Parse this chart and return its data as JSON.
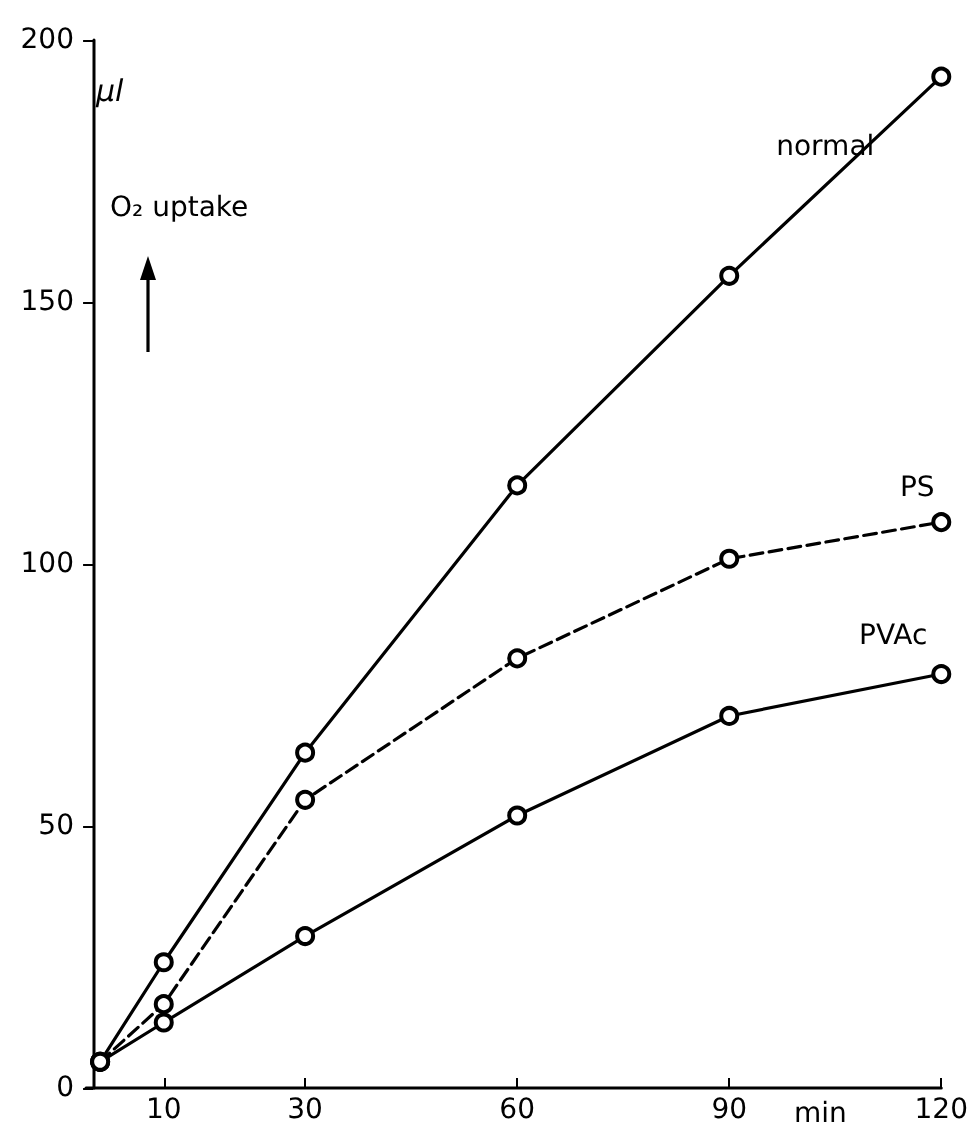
{
  "chart_data": {
    "type": "line",
    "xlabel": "min",
    "ylabel": "µl",
    "annotations": [
      "O₂ uptake"
    ],
    "xlim": [
      -1,
      120
    ],
    "xticks": [
      10,
      30,
      60,
      90,
      120
    ],
    "ylim": [
      0,
      200
    ],
    "yticks": [
      0,
      50,
      100,
      150,
      200
    ],
    "grid": false,
    "legend": false,
    "marker": "circle",
    "series": [
      {
        "name": "normal",
        "color": "#000000",
        "line_style": "solid",
        "x": [
          1,
          10,
          30,
          60,
          90,
          120
        ],
        "values": [
          5,
          24,
          64,
          115,
          155,
          193
        ]
      },
      {
        "name": "PS",
        "color": "#000000",
        "line_style": "dashed",
        "x": [
          1,
          10,
          30,
          60,
          90,
          120
        ],
        "values": [
          5,
          16,
          55,
          82,
          101,
          108
        ]
      },
      {
        "name": "PVAc",
        "color": "#000000",
        "line_style": "solid",
        "x": [
          1,
          10,
          30,
          60,
          90,
          120
        ],
        "values": [
          5,
          12.5,
          29,
          52,
          71,
          79
        ]
      }
    ]
  }
}
